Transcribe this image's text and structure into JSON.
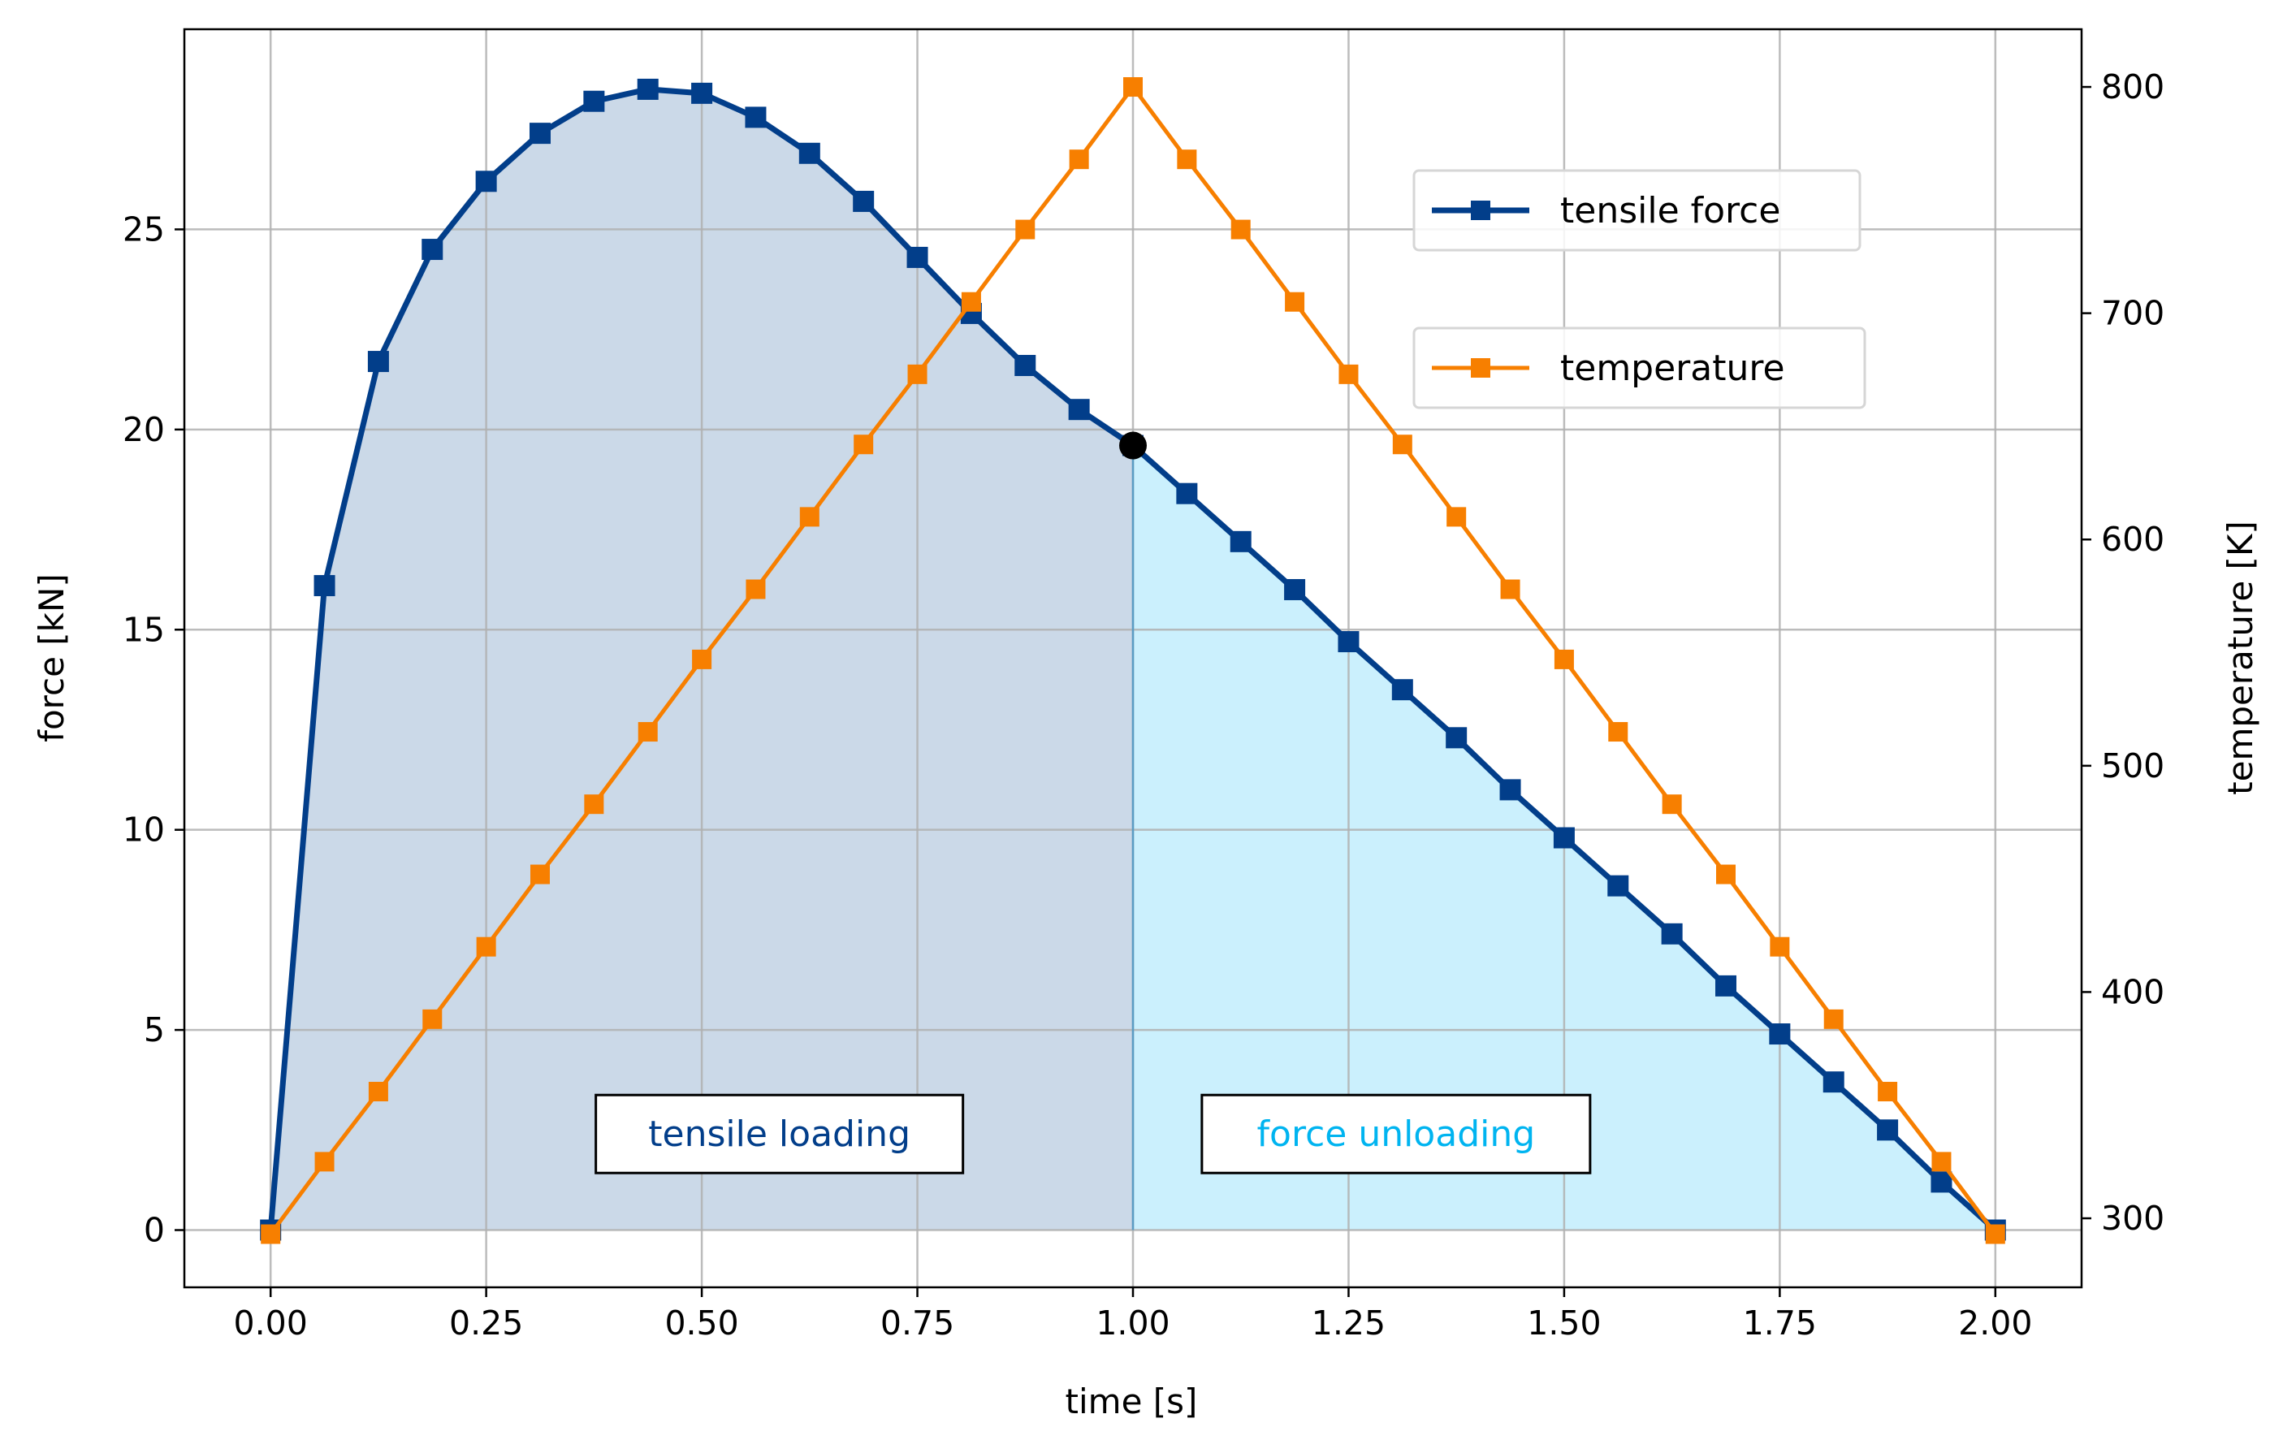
{
  "chart_data": {
    "type": "line",
    "x": [
      0.0,
      0.0625,
      0.125,
      0.1875,
      0.25,
      0.3125,
      0.375,
      0.4375,
      0.5,
      0.5625,
      0.625,
      0.6875,
      0.75,
      0.8125,
      0.875,
      0.9375,
      1.0,
      1.0625,
      1.125,
      1.1875,
      1.25,
      1.3125,
      1.375,
      1.4375,
      1.5,
      1.5625,
      1.625,
      1.6875,
      1.75,
      1.8125,
      1.875,
      1.9375,
      2.0
    ],
    "series": [
      {
        "name": "tensile force",
        "axis": "left",
        "color": "#023e8a",
        "marker": "square",
        "values": [
          0.0,
          16.1,
          21.7,
          24.5,
          26.2,
          27.4,
          28.2,
          28.5,
          28.4,
          27.8,
          26.9,
          25.7,
          24.3,
          22.9,
          21.6,
          20.5,
          19.6,
          18.4,
          17.2,
          16.0,
          14.7,
          13.5,
          12.3,
          11.0,
          9.8,
          8.6,
          7.4,
          6.1,
          4.9,
          3.7,
          2.5,
          1.2,
          0.0
        ]
      },
      {
        "name": "temperature",
        "axis": "right",
        "color": "#f77f00",
        "marker": "square",
        "values": [
          293,
          325,
          356,
          388,
          420,
          452,
          483,
          515,
          547,
          578,
          610,
          642,
          673,
          705,
          737,
          768,
          800,
          768,
          737,
          705,
          673,
          642,
          610,
          578,
          547,
          515,
          483,
          452,
          420,
          388,
          356,
          325,
          293
        ]
      }
    ],
    "marker_point": {
      "x": 1.0,
      "y": 19.6,
      "color": "#000000"
    },
    "shaded_regions": [
      {
        "x_from": 0.0,
        "x_to": 1.0,
        "color": "#cbd9e8",
        "label": "tensile loading",
        "label_color": "#023e8a",
        "label_x": 0.59,
        "label_y": 2.4
      },
      {
        "x_from": 1.0,
        "x_to": 2.0,
        "color": "#cbf0fd",
        "label": "force unloading",
        "label_color": "#00b4f0",
        "label_x": 1.305,
        "label_y": 2.4
      }
    ],
    "xlabel": "time [s]",
    "ylabel": "force [kN]",
    "y2label": "temperature [K]",
    "xlim": [
      -0.1,
      2.1
    ],
    "ylim": [
      -1.43,
      30.0
    ],
    "y2lim": [
      269.5,
      825.5
    ],
    "xticks": [
      0.0,
      0.25,
      0.5,
      0.75,
      1.0,
      1.25,
      1.5,
      1.75,
      2.0
    ],
    "xtick_labels": [
      "0.00",
      "0.25",
      "0.50",
      "0.75",
      "1.00",
      "1.25",
      "1.50",
      "1.75",
      "2.00"
    ],
    "yticks": [
      0,
      5,
      10,
      15,
      20,
      25
    ],
    "ytick_labels": [
      "0",
      "5",
      "10",
      "15",
      "20",
      "25"
    ],
    "y2ticks": [
      300,
      400,
      500,
      600,
      700,
      800
    ],
    "y2tick_labels": [
      "300",
      "400",
      "500",
      "600",
      "700",
      "800"
    ],
    "grid": true,
    "legend": [
      {
        "label": "tensile force",
        "color": "#023e8a",
        "placement": "upper-right"
      },
      {
        "label": "temperature",
        "color": "#f77f00",
        "placement": "upper-right"
      }
    ]
  }
}
